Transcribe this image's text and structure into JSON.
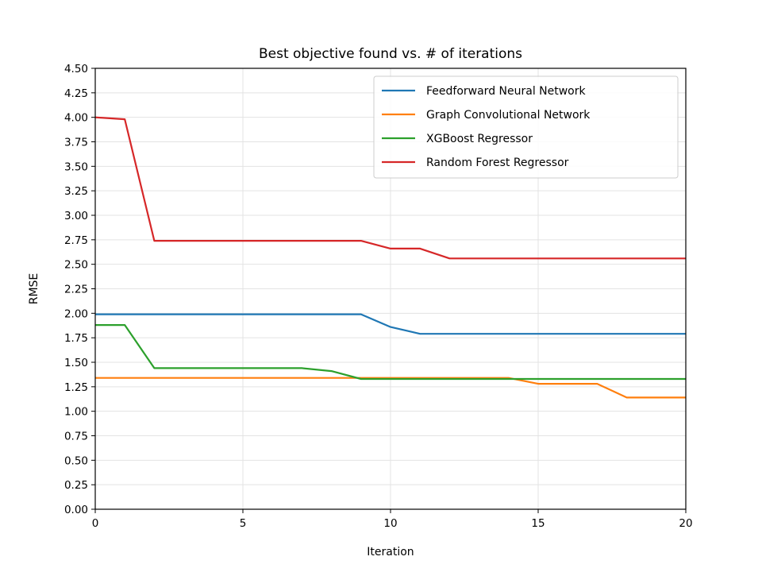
{
  "chart_data": {
    "type": "line",
    "title": "Best objective found vs. # of iterations",
    "xlabel": "Iteration",
    "ylabel": "RMSE",
    "xlim": [
      0,
      20
    ],
    "ylim": [
      0,
      4.5
    ],
    "xticks": [
      0,
      5,
      10,
      15,
      20
    ],
    "yticks": [
      0.0,
      0.25,
      0.5,
      0.75,
      1.0,
      1.25,
      1.5,
      1.75,
      2.0,
      2.25,
      2.5,
      2.75,
      3.0,
      3.25,
      3.5,
      3.75,
      4.0,
      4.25,
      4.5
    ],
    "grid": true,
    "legend_position": "top-right",
    "x": [
      0,
      1,
      2,
      3,
      4,
      5,
      6,
      7,
      8,
      9,
      10,
      11,
      12,
      13,
      14,
      15,
      16,
      17,
      18,
      19,
      20
    ],
    "series": [
      {
        "name": "Feedforward Neural Network",
        "color": "#1f77b4",
        "values": [
          1.99,
          1.99,
          1.99,
          1.99,
          1.99,
          1.99,
          1.99,
          1.99,
          1.99,
          1.99,
          1.86,
          1.79,
          1.79,
          1.79,
          1.79,
          1.79,
          1.79,
          1.79,
          1.79,
          1.79,
          1.79
        ]
      },
      {
        "name": "Graph Convolutional Network",
        "color": "#ff7f0e",
        "values": [
          1.34,
          1.34,
          1.34,
          1.34,
          1.34,
          1.34,
          1.34,
          1.34,
          1.34,
          1.34,
          1.34,
          1.34,
          1.34,
          1.34,
          1.34,
          1.28,
          1.28,
          1.28,
          1.14,
          1.14,
          1.14
        ]
      },
      {
        "name": "XGBoost Regressor",
        "color": "#2ca02c",
        "values": [
          1.88,
          1.88,
          1.44,
          1.44,
          1.44,
          1.44,
          1.44,
          1.44,
          1.41,
          1.33,
          1.33,
          1.33,
          1.33,
          1.33,
          1.33,
          1.33,
          1.33,
          1.33,
          1.33,
          1.33,
          1.33
        ]
      },
      {
        "name": "Random Forest Regressor",
        "color": "#d62728",
        "values": [
          4.0,
          3.98,
          2.74,
          2.74,
          2.74,
          2.74,
          2.74,
          2.74,
          2.74,
          2.74,
          2.66,
          2.66,
          2.56,
          2.56,
          2.56,
          2.56,
          2.56,
          2.56,
          2.56,
          2.56,
          2.56
        ]
      }
    ]
  }
}
